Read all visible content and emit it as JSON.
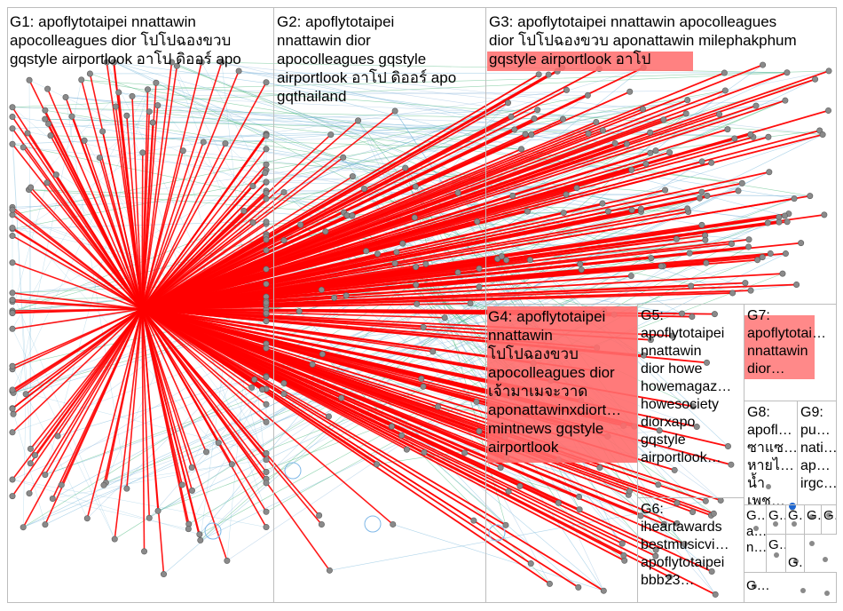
{
  "graph": {
    "edge_color": "#ff0000",
    "minor_edge_colors": [
      "#6fb3d8",
      "#3cb371",
      "#9bbfe0"
    ],
    "node_color": "#8a8a8a",
    "hub_color": "#ff0000",
    "label_highlight": "#ff6b6b"
  },
  "groups": [
    {
      "id": "g1",
      "label": "G1: apoflytotaipei nnattawin\napocolleagues dior โปโปฉองขวบ\ngqstyle airportlook อาโป ดิออร์ apo"
    },
    {
      "id": "g2",
      "label": "G2: apoflytotaipei\nnnattawin dior\napocolleagues gqstyle\nairportlook อาโป ดิออร์ apo\ngqthailand"
    },
    {
      "id": "g3",
      "label": "G3: apoflytotaipei nnattawin apocolleagues\ndior โปโปฉองขวบ aponattawin milephakphum\ngqstyle airportlook อาโป"
    },
    {
      "id": "g4",
      "label": "G4: apoflytotaipei\nnnattawin\nโปโปฉองขวบ\napocolleagues dior\nเจ้ามาเมจะวาด\naponattawinxdiort…\nmintnews gqstyle\nairportlook"
    },
    {
      "id": "g5",
      "label": "G5:\napoflytotaipei\nnnattawin\ndior howe\nhowemagaz…\nhowesociety\ndiorxapo\ngqstyle\nairportlook…"
    },
    {
      "id": "g6",
      "label": "G6:\niheartawards\nbestmusicvi…\napoflytotaipei\nbbb23…"
    },
    {
      "id": "g7",
      "label": "G7:\napoflytotai…\nnnattawin\ndior…"
    },
    {
      "id": "g8",
      "label": "G8:\napofl…\nซาแซ…\nหายไ…\nน้ำเพช…"
    },
    {
      "id": "g9",
      "label": "G9:\npu…\nnati…\nap…\nirgc…"
    },
    {
      "id": "g10",
      "label": "G…\na…\nn…"
    },
    {
      "id": "g11",
      "label": "G…"
    },
    {
      "id": "g12",
      "label": "G…"
    },
    {
      "id": "g13",
      "label": "G…"
    },
    {
      "id": "g14",
      "label": "G…"
    },
    {
      "id": "g15",
      "label": "G…"
    },
    {
      "id": "g16",
      "label": "G…"
    },
    {
      "id": "g17",
      "label": "G…"
    }
  ]
}
